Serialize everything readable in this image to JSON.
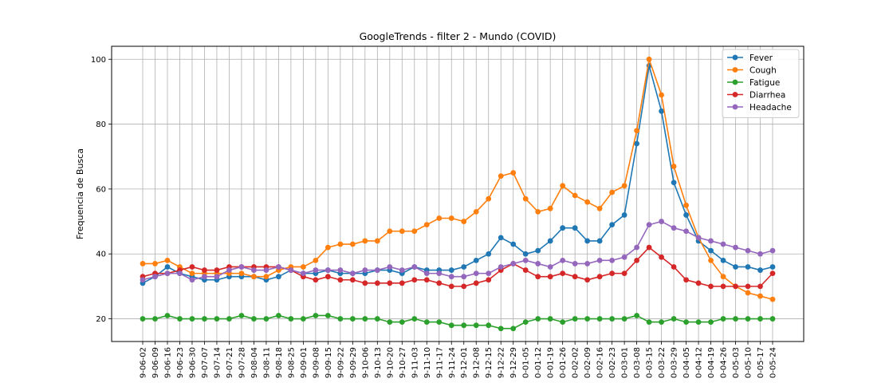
{
  "chart_data": {
    "type": "line",
    "title": "GoogleTrends - filter 2 - Mundo (COVID)",
    "xlabel": "",
    "ylabel": "Frequencia de Busca",
    "ylim": [
      13,
      104
    ],
    "yticks": [
      20,
      40,
      60,
      80,
      100
    ],
    "grid": true,
    "legend_position": "top-right",
    "categories": [
      "9-06-02",
      "9-06-09",
      "9-06-16",
      "9-06-23",
      "9-06-30",
      "9-07-07",
      "9-07-14",
      "9-07-21",
      "9-07-28",
      "9-08-04",
      "9-08-11",
      "9-08-18",
      "9-08-25",
      "9-09-01",
      "9-09-08",
      "9-09-15",
      "9-09-22",
      "9-09-29",
      "9-10-06",
      "9-10-13",
      "9-10-20",
      "9-10-27",
      "9-11-03",
      "9-11-10",
      "9-11-17",
      "9-11-24",
      "9-12-01",
      "9-12-08",
      "9-12-15",
      "9-12-22",
      "9-12-29",
      "0-01-05",
      "0-01-12",
      "0-01-19",
      "0-01-26",
      "0-02-02",
      "0-02-09",
      "0-02-16",
      "0-02-23",
      "0-03-01",
      "0-03-08",
      "0-03-15",
      "0-03-22",
      "0-03-29",
      "0-04-05",
      "0-04-12",
      "0-04-19",
      "0-04-26",
      "0-05-03",
      "0-05-10",
      "0-05-17",
      "0-05-24"
    ],
    "series": [
      {
        "name": "Fever",
        "color": "#1f77b4",
        "values": [
          31,
          33,
          36,
          34,
          33,
          32,
          32,
          33,
          33,
          33,
          32,
          33,
          35,
          34,
          34,
          35,
          34,
          34,
          34,
          35,
          35,
          34,
          36,
          35,
          35,
          35,
          36,
          38,
          40,
          45,
          43,
          40,
          41,
          44,
          48,
          48,
          44,
          44,
          49,
          52,
          74,
          98,
          84,
          62,
          52,
          44,
          41,
          38,
          36,
          36,
          35,
          36
        ]
      },
      {
        "name": "Cough",
        "color": "#ff7f0e",
        "values": [
          37,
          37,
          38,
          36,
          34,
          34,
          34,
          34,
          34,
          33,
          33,
          35,
          36,
          36,
          38,
          42,
          43,
          43,
          44,
          44,
          47,
          47,
          47,
          49,
          51,
          51,
          50,
          53,
          57,
          64,
          65,
          57,
          53,
          54,
          61,
          58,
          56,
          54,
          59,
          61,
          78,
          100,
          89,
          67,
          55,
          45,
          38,
          33,
          30,
          28,
          27,
          26
        ]
      },
      {
        "name": "Fatigue",
        "color": "#2ca02c",
        "values": [
          20,
          20,
          21,
          20,
          20,
          20,
          20,
          20,
          21,
          20,
          20,
          21,
          20,
          20,
          21,
          21,
          20,
          20,
          20,
          20,
          19,
          19,
          20,
          19,
          19,
          18,
          18,
          18,
          18,
          17,
          17,
          19,
          20,
          20,
          19,
          20,
          20,
          20,
          20,
          20,
          21,
          19,
          19,
          20,
          19,
          19,
          19,
          20,
          20,
          20,
          20,
          20
        ]
      },
      {
        "name": "Diarrhea",
        "color": "#d62728",
        "values": [
          33,
          34,
          34,
          35,
          36,
          35,
          35,
          36,
          36,
          36,
          36,
          36,
          35,
          33,
          32,
          33,
          32,
          32,
          31,
          31,
          31,
          31,
          32,
          32,
          31,
          30,
          30,
          31,
          32,
          35,
          37,
          35,
          33,
          33,
          34,
          33,
          32,
          33,
          34,
          34,
          38,
          42,
          39,
          36,
          32,
          31,
          30,
          30,
          30,
          30,
          30,
          34
        ]
      },
      {
        "name": "Headache",
        "color": "#9467bd",
        "values": [
          32,
          33,
          34,
          34,
          32,
          33,
          33,
          35,
          36,
          35,
          35,
          36,
          35,
          34,
          35,
          35,
          35,
          34,
          35,
          35,
          36,
          35,
          36,
          34,
          34,
          33,
          33,
          34,
          34,
          36,
          37,
          38,
          37,
          36,
          38,
          37,
          37,
          38,
          38,
          39,
          42,
          49,
          50,
          48,
          47,
          45,
          44,
          43,
          42,
          41,
          40,
          41
        ]
      }
    ]
  }
}
